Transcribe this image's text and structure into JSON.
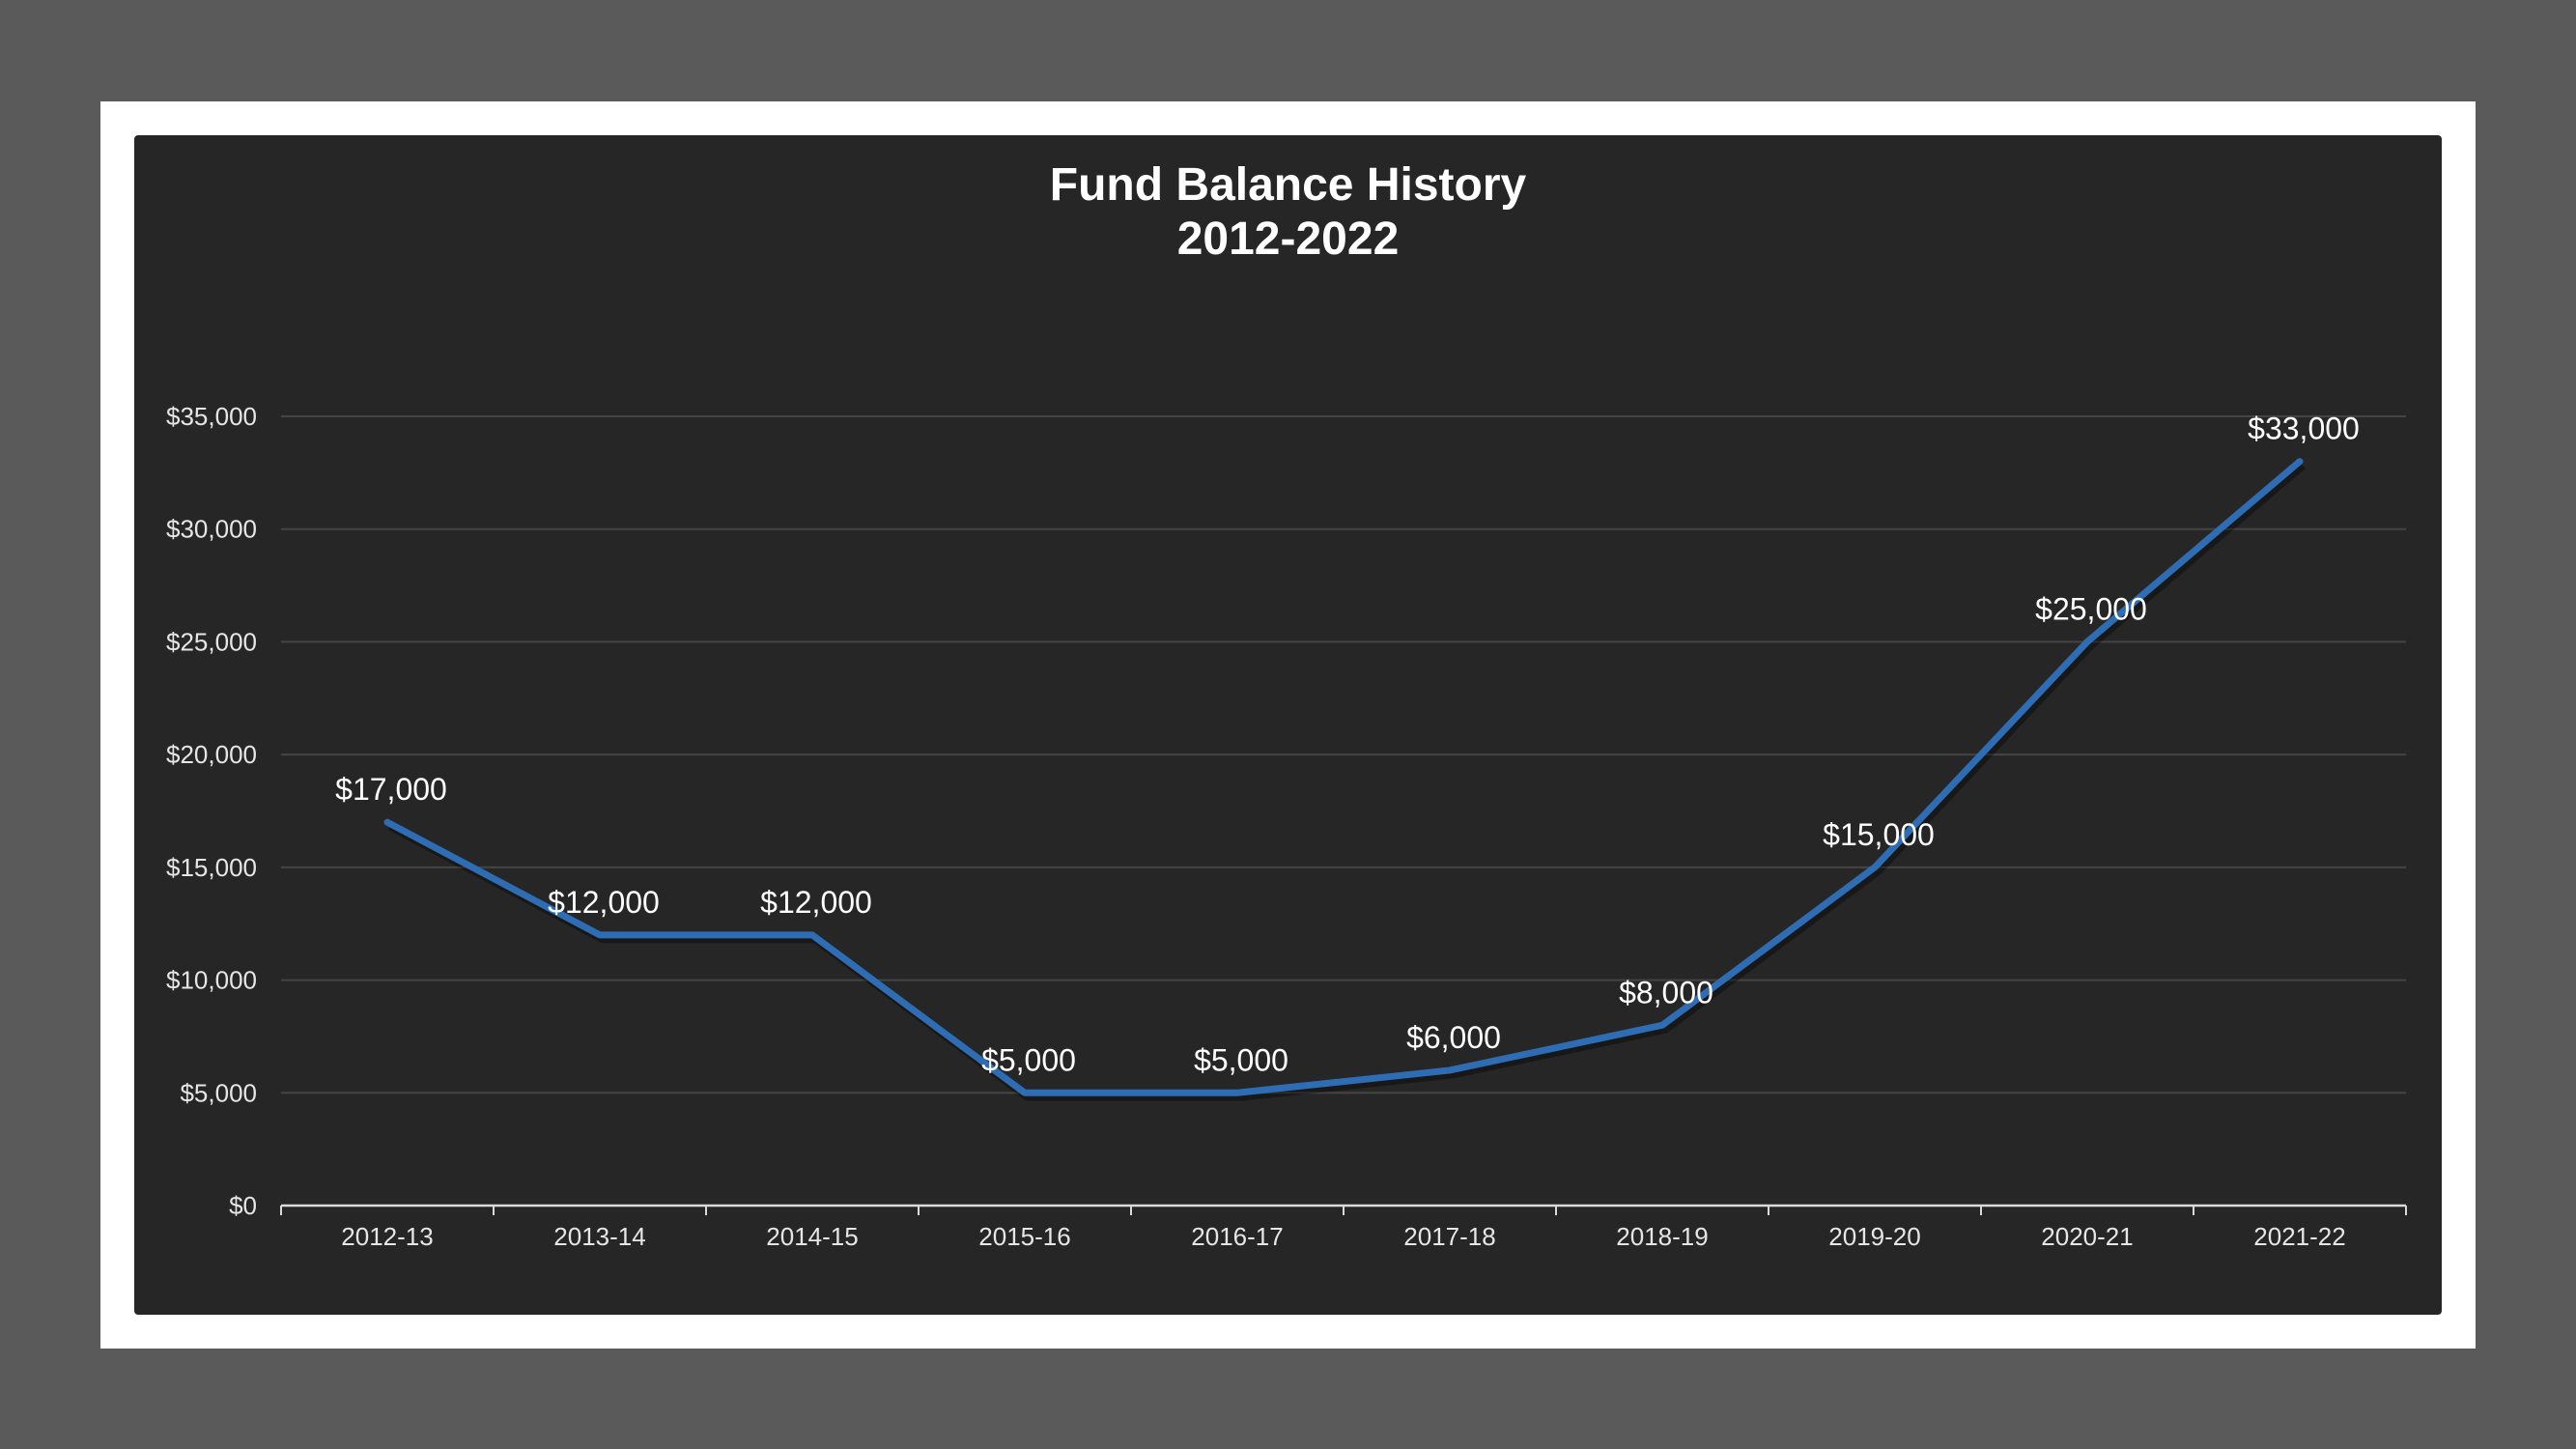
{
  "chart_data": {
    "type": "line",
    "title": "Fund Balance History",
    "subtitle": "2012-2022",
    "categories": [
      "2012-13",
      "2013-14",
      "2014-15",
      "2015-16",
      "2016-17",
      "2017-18",
      "2018-19",
      "2019-20",
      "2020-21",
      "2021-22"
    ],
    "series": [
      {
        "values": [
          17000,
          12000,
          12000,
          5000,
          5000,
          6000,
          8000,
          15000,
          25000,
          33000
        ],
        "data_labels": [
          "$17,000",
          "$12,000",
          "$12,000",
          "$5,000",
          "$5,000",
          "$6,000",
          "$8,000",
          "$15,000",
          "$25,000",
          "$33,000"
        ],
        "color": "#2e6db4"
      }
    ],
    "y_ticks": [
      0,
      5000,
      10000,
      15000,
      20000,
      25000,
      30000,
      35000
    ],
    "y_tick_labels": [
      "$0",
      "$5,000",
      "$10,000",
      "$15,000",
      "$20,000",
      "$25,000",
      "$30,000",
      "$35,000"
    ],
    "ylim": [
      0,
      35000
    ],
    "xlabel": "",
    "ylabel": "",
    "grid": true,
    "legend": "none",
    "colors": {
      "page_background": "#5a5a5a",
      "frame": "#ffffff",
      "chart_background": "#262626",
      "gridline": "#444444",
      "axis": "#d9d9d9",
      "text": "#ffffff"
    }
  }
}
